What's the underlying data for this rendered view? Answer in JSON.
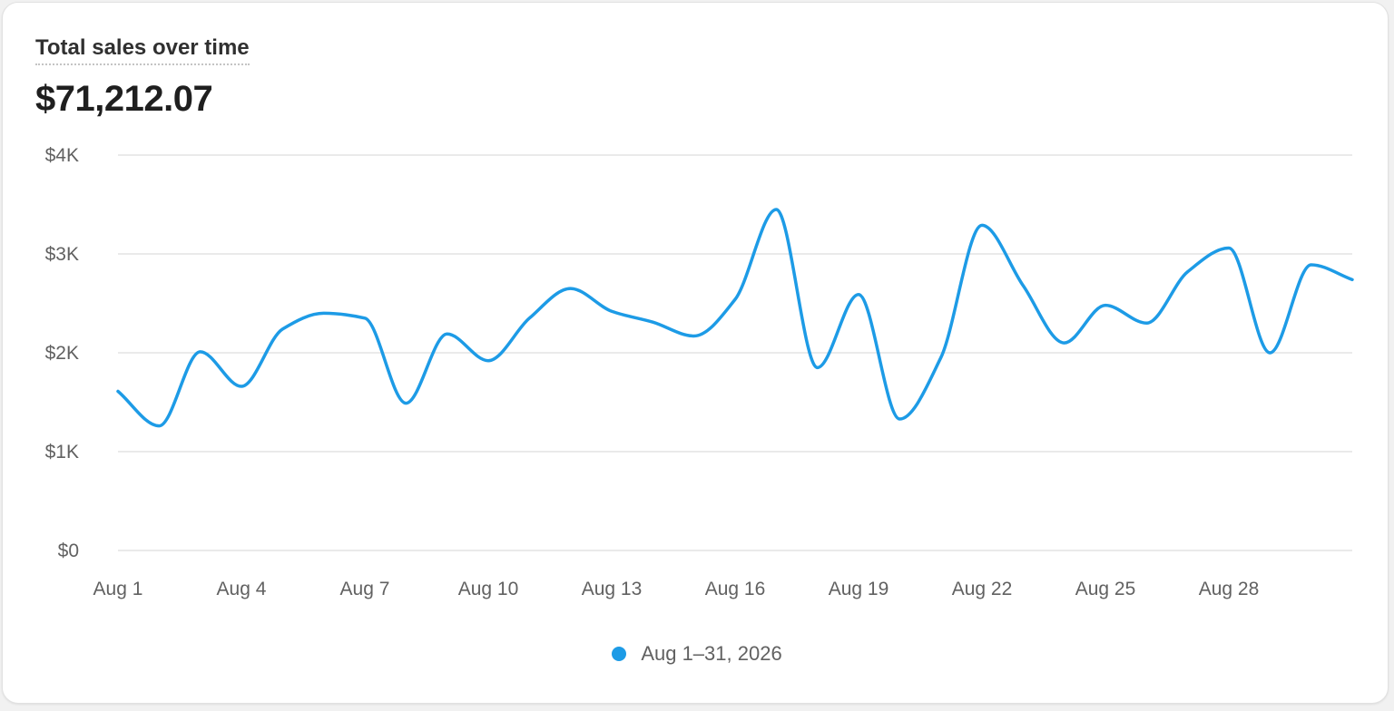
{
  "card": {
    "title": "Total sales over time",
    "total_value": "$71,212.07"
  },
  "colors": {
    "series": "#1d9be6",
    "grid": "#e3e3e3",
    "axis_text": "#616161",
    "title_text": "#303030"
  },
  "chart_data": {
    "type": "line",
    "title": "Total sales over time",
    "xlabel": "",
    "ylabel": "",
    "ylim": [
      0,
      4000
    ],
    "grid": true,
    "legend_position": "bottom-center",
    "y_ticks": [
      0,
      1000,
      2000,
      3000,
      4000
    ],
    "y_tick_labels": [
      "$0",
      "$1K",
      "$2K",
      "$3K",
      "$4K"
    ],
    "x": [
      "Aug 1",
      "Aug 2",
      "Aug 3",
      "Aug 4",
      "Aug 5",
      "Aug 6",
      "Aug 7",
      "Aug 8",
      "Aug 9",
      "Aug 10",
      "Aug 11",
      "Aug 12",
      "Aug 13",
      "Aug 14",
      "Aug 15",
      "Aug 16",
      "Aug 17",
      "Aug 18",
      "Aug 19",
      "Aug 20",
      "Aug 21",
      "Aug 22",
      "Aug 23",
      "Aug 24",
      "Aug 25",
      "Aug 26",
      "Aug 27",
      "Aug 28",
      "Aug 29",
      "Aug 30",
      "Aug 31"
    ],
    "x_tick_labels": [
      "Aug 1",
      "Aug 4",
      "Aug 7",
      "Aug 10",
      "Aug 13",
      "Aug 16",
      "Aug 19",
      "Aug 22",
      "Aug 25",
      "Aug 28"
    ],
    "series": [
      {
        "name": "Aug 1–31, 2026",
        "values": [
          1610,
          1260,
          2010,
          1660,
          2240,
          2400,
          2350,
          1490,
          2190,
          1920,
          2350,
          2650,
          2420,
          2310,
          2170,
          2540,
          3450,
          1850,
          2590,
          1330,
          1950,
          3290,
          2680,
          2100,
          2480,
          2300,
          2820,
          3060,
          2000,
          2890,
          2740
        ]
      }
    ]
  }
}
